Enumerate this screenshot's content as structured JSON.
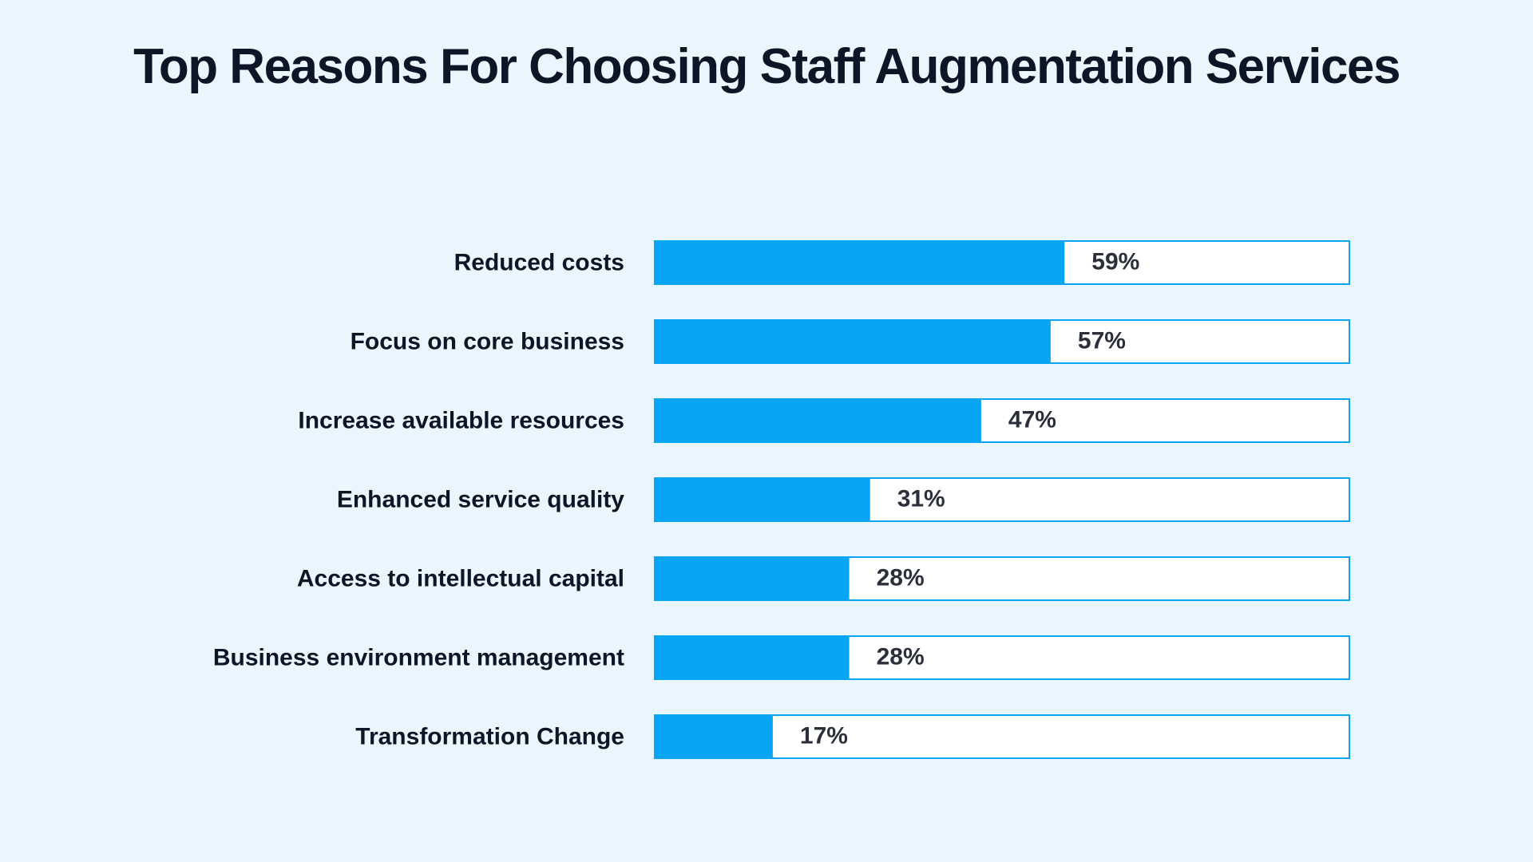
{
  "chart_data": {
    "type": "bar",
    "orientation": "horizontal",
    "title": "Top Reasons For Choosing Staff Augmentation Services",
    "categories": [
      "Reduced costs",
      "Focus on core business",
      "Increase available resources",
      "Enhanced service quality",
      "Access to intellectual capital",
      "Business environment management",
      "Transformation Change"
    ],
    "values": [
      59,
      57,
      47,
      31,
      28,
      28,
      17
    ],
    "value_labels": [
      "59%",
      "57%",
      "47%",
      "31%",
      "28%",
      "28%",
      "17%"
    ],
    "xlim": [
      0,
      100
    ],
    "grid": false,
    "legend": "none"
  },
  "colors": {
    "background": "#e9f6fd",
    "bar_fill": "#08a5f5",
    "bar_track": "#ffffff",
    "bar_border": "#08a5f5",
    "text": "#0d1526"
  }
}
